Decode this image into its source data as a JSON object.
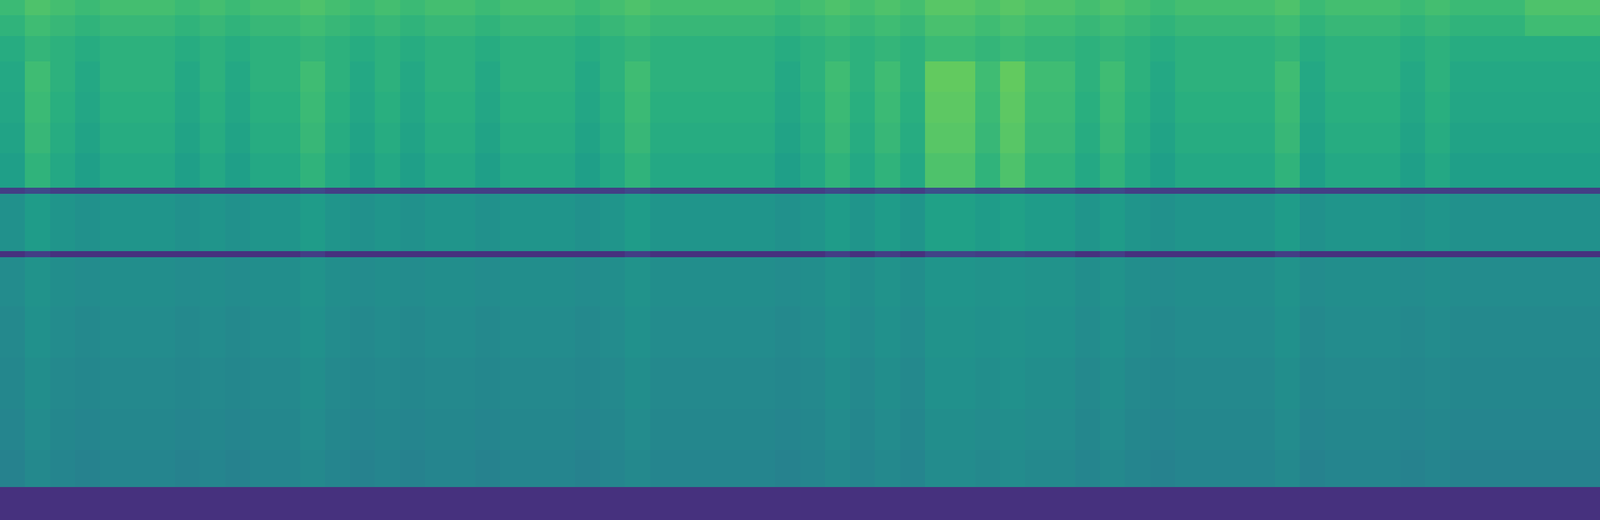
{
  "chart_data": {
    "type": "heatmap",
    "tick_labels": false,
    "xlim": [
      -0.5,
      63.5
    ],
    "ylim": [
      0,
      100
    ],
    "zlim": [
      0,
      100
    ],
    "y": [
      0,
      6.3,
      13.5,
      21.4,
      31.2,
      41.1,
      50.5,
      51.7,
      57.8,
      62.7,
      63.9,
      70.5,
      76.4,
      82.3,
      88.2,
      93.1,
      97.1,
      100
    ],
    "z": [
      [
        14,
        14,
        14,
        14,
        14,
        14,
        14,
        14,
        14,
        14,
        14,
        14,
        14,
        14,
        14,
        14,
        14,
        14,
        14,
        14,
        14,
        14,
        14,
        14,
        14,
        14,
        14,
        14,
        14,
        14,
        14,
        14,
        14,
        14,
        14,
        14,
        14,
        14,
        14,
        14,
        14,
        14,
        14,
        14,
        14,
        14,
        14,
        14,
        14,
        14,
        14,
        14,
        14,
        14,
        14,
        14,
        14,
        14,
        14,
        14,
        14,
        14,
        14,
        14
      ],
      [
        44,
        47,
        45,
        44,
        45,
        45,
        45,
        44,
        45,
        44,
        45,
        45,
        47,
        45,
        44,
        45,
        44,
        45,
        45,
        44,
        45,
        45,
        45,
        44,
        45,
        47,
        45,
        45,
        45,
        45,
        45,
        44,
        45,
        47,
        45,
        47,
        45,
        48,
        48,
        47,
        48,
        47,
        47,
        45,
        47,
        45,
        44,
        45,
        45,
        45,
        45,
        47,
        44,
        45,
        45,
        45,
        44,
        45,
        44,
        44,
        44,
        44,
        44,
        44
      ],
      [
        45,
        48,
        46,
        45,
        46,
        46,
        46,
        45,
        46,
        45,
        46,
        46,
        48,
        46,
        45,
        46,
        45,
        46,
        46,
        45,
        46,
        46,
        46,
        45,
        46,
        48,
        46,
        46,
        46,
        46,
        46,
        45,
        46,
        48,
        46,
        48,
        46,
        49,
        49,
        48,
        49,
        48,
        48,
        46,
        48,
        46,
        45,
        46,
        46,
        46,
        46,
        48,
        45,
        46,
        46,
        46,
        45,
        46,
        45,
        45,
        45,
        45,
        45,
        45
      ],
      [
        46,
        49,
        47,
        46,
        47,
        47,
        47,
        46,
        47,
        46,
        47,
        47,
        49,
        47,
        46,
        47,
        46,
        47,
        47,
        46,
        47,
        47,
        47,
        46,
        47,
        49,
        47,
        47,
        47,
        47,
        47,
        46,
        47,
        49,
        47,
        49,
        47,
        50,
        50,
        49,
        50,
        49,
        49,
        47,
        49,
        47,
        46,
        47,
        47,
        47,
        47,
        49,
        46,
        47,
        47,
        47,
        46,
        47,
        46,
        46,
        46,
        46,
        46,
        46
      ],
      [
        47,
        50,
        48,
        47,
        48,
        48,
        48,
        47,
        48,
        47,
        48,
        48,
        50,
        48,
        47,
        48,
        47,
        48,
        48,
        47,
        48,
        48,
        48,
        47,
        48,
        50,
        48,
        48,
        48,
        48,
        48,
        47,
        48,
        50,
        48,
        50,
        48,
        51,
        51,
        50,
        51,
        50,
        50,
        48,
        50,
        48,
        47,
        48,
        48,
        48,
        48,
        50,
        47,
        48,
        48,
        48,
        47,
        48,
        47,
        47,
        47,
        47,
        47,
        47
      ],
      [
        48,
        51,
        49,
        48,
        49,
        49,
        49,
        48,
        49,
        48,
        49,
        49,
        51,
        49,
        48,
        49,
        48,
        49,
        49,
        48,
        49,
        49,
        49,
        48,
        49,
        51,
        49,
        49,
        49,
        49,
        49,
        48,
        49,
        51,
        49,
        51,
        49,
        52,
        52,
        51,
        52,
        51,
        51,
        49,
        51,
        49,
        48,
        49,
        49,
        49,
        49,
        51,
        48,
        49,
        49,
        49,
        48,
        49,
        48,
        48,
        48,
        48,
        48,
        48
      ],
      [
        14,
        18,
        14,
        14,
        14,
        14,
        14,
        14,
        14,
        14,
        14,
        14,
        18,
        14,
        14,
        14,
        14,
        14,
        14,
        14,
        14,
        14,
        14,
        14,
        14,
        18,
        14,
        14,
        14,
        14,
        14,
        14,
        14,
        18,
        14,
        18,
        14,
        20,
        20,
        18,
        20,
        18,
        18,
        14,
        18,
        14,
        14,
        14,
        14,
        14,
        14,
        18,
        14,
        14,
        14,
        14,
        14,
        14,
        14,
        14,
        14,
        14,
        14,
        14
      ],
      [
        50,
        55,
        52,
        50,
        52,
        52,
        52,
        50,
        52,
        50,
        52,
        52,
        55,
        52,
        50,
        52,
        50,
        52,
        52,
        50,
        52,
        52,
        52,
        50,
        52,
        55,
        52,
        52,
        52,
        52,
        52,
        50,
        52,
        55,
        52,
        55,
        52,
        57,
        57,
        55,
        57,
        55,
        55,
        52,
        55,
        52,
        50,
        52,
        52,
        52,
        52,
        55,
        50,
        52,
        52,
        52,
        50,
        52,
        50,
        50,
        50,
        50,
        50,
        50
      ],
      [
        50,
        55,
        52,
        50,
        52,
        52,
        52,
        50,
        52,
        50,
        52,
        52,
        55,
        52,
        50,
        52,
        50,
        52,
        52,
        50,
        52,
        52,
        52,
        50,
        52,
        55,
        52,
        52,
        52,
        52,
        52,
        50,
        52,
        55,
        52,
        55,
        52,
        57,
        57,
        55,
        57,
        55,
        55,
        52,
        55,
        52,
        50,
        52,
        52,
        52,
        52,
        55,
        50,
        52,
        52,
        52,
        50,
        52,
        50,
        50,
        50,
        50,
        50,
        50
      ],
      [
        18,
        22,
        18,
        18,
        18,
        18,
        18,
        18,
        18,
        18,
        18,
        18,
        22,
        18,
        18,
        18,
        18,
        18,
        18,
        18,
        18,
        18,
        18,
        18,
        18,
        22,
        18,
        18,
        18,
        18,
        18,
        18,
        18,
        22,
        18,
        22,
        18,
        24,
        24,
        22,
        24,
        22,
        22,
        18,
        22,
        18,
        18,
        18,
        18,
        18,
        18,
        22,
        18,
        18,
        18,
        18,
        18,
        18,
        18,
        18,
        18,
        18,
        18,
        18
      ],
      [
        56,
        65,
        60,
        56,
        60,
        60,
        60,
        56,
        60,
        56,
        60,
        60,
        65,
        60,
        56,
        60,
        56,
        60,
        60,
        56,
        60,
        60,
        60,
        56,
        60,
        65,
        60,
        60,
        60,
        60,
        60,
        56,
        60,
        65,
        60,
        65,
        60,
        72,
        72,
        65,
        72,
        65,
        65,
        60,
        65,
        60,
        56,
        60,
        60,
        60,
        60,
        65,
        56,
        60,
        60,
        60,
        56,
        60,
        56,
        56,
        56,
        56,
        56,
        56
      ],
      [
        58,
        67,
        62,
        58,
        62,
        62,
        62,
        58,
        62,
        58,
        62,
        62,
        67,
        62,
        58,
        62,
        58,
        62,
        62,
        58,
        62,
        62,
        62,
        58,
        62,
        67,
        62,
        62,
        62,
        62,
        62,
        58,
        62,
        67,
        62,
        67,
        62,
        74,
        74,
        67,
        74,
        67,
        67,
        62,
        67,
        62,
        58,
        62,
        62,
        62,
        62,
        67,
        58,
        62,
        62,
        62,
        58,
        62,
        58,
        58,
        58,
        58,
        58,
        58
      ],
      [
        59,
        68,
        63,
        59,
        63,
        63,
        63,
        59,
        63,
        59,
        63,
        63,
        68,
        63,
        59,
        63,
        59,
        63,
        63,
        59,
        63,
        63,
        63,
        59,
        63,
        68,
        63,
        63,
        63,
        63,
        63,
        59,
        63,
        68,
        63,
        68,
        63,
        75,
        75,
        68,
        75,
        68,
        68,
        63,
        68,
        63,
        59,
        63,
        63,
        63,
        63,
        68,
        59,
        63,
        63,
        63,
        59,
        63,
        59,
        59,
        59,
        59,
        59,
        59
      ],
      [
        60,
        69,
        64,
        60,
        64,
        64,
        64,
        60,
        64,
        60,
        64,
        64,
        69,
        64,
        60,
        64,
        60,
        64,
        64,
        60,
        64,
        64,
        64,
        60,
        64,
        69,
        64,
        64,
        64,
        64,
        64,
        60,
        64,
        69,
        64,
        69,
        64,
        76,
        76,
        69,
        76,
        69,
        69,
        64,
        69,
        64,
        60,
        64,
        64,
        64,
        64,
        69,
        60,
        64,
        64,
        64,
        60,
        64,
        60,
        60,
        60,
        60,
        60,
        60
      ],
      [
        62,
        66,
        64,
        62,
        64,
        64,
        64,
        62,
        64,
        62,
        64,
        64,
        66,
        64,
        62,
        64,
        62,
        64,
        64,
        62,
        64,
        64,
        64,
        62,
        64,
        66,
        64,
        64,
        64,
        64,
        64,
        62,
        64,
        66,
        64,
        66,
        64,
        68,
        68,
        66,
        68,
        66,
        66,
        64,
        66,
        64,
        62,
        64,
        64,
        64,
        64,
        66,
        62,
        64,
        64,
        64,
        62,
        64,
        62,
        62,
        62,
        62,
        62,
        62
      ],
      [
        65,
        69,
        67,
        65,
        67,
        67,
        67,
        65,
        67,
        65,
        67,
        67,
        69,
        67,
        65,
        67,
        65,
        67,
        67,
        65,
        67,
        67,
        67,
        65,
        67,
        69,
        67,
        67,
        67,
        67,
        67,
        65,
        67,
        69,
        67,
        69,
        67,
        71,
        71,
        69,
        71,
        69,
        69,
        67,
        69,
        67,
        65,
        67,
        67,
        67,
        67,
        69,
        65,
        67,
        67,
        67,
        65,
        67,
        65,
        65,
        65,
        69,
        69,
        69
      ],
      [
        68,
        72,
        70,
        68,
        70,
        70,
        70,
        68,
        70,
        68,
        70,
        70,
        72,
        70,
        68,
        70,
        68,
        70,
        70,
        68,
        70,
        70,
        70,
        68,
        70,
        72,
        70,
        70,
        70,
        70,
        70,
        68,
        70,
        72,
        70,
        72,
        70,
        74,
        74,
        72,
        74,
        72,
        72,
        70,
        72,
        70,
        68,
        70,
        70,
        70,
        70,
        72,
        68,
        70,
        70,
        70,
        68,
        70,
        68,
        68,
        68,
        72,
        72,
        72
      ]
    ]
  }
}
